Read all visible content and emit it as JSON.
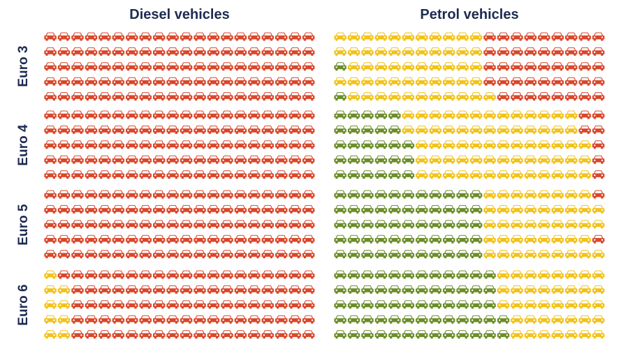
{
  "chart_data": {
    "type": "waffle",
    "columns": [
      "Diesel vehicles",
      "Petrol vehicles"
    ],
    "rows": [
      "Euro 3",
      "Euro 4",
      "Euro 5",
      "Euro 6"
    ],
    "icon": "car-icon",
    "icons_per_line": 20,
    "lines_per_block": 5,
    "colors": {
      "green": "#6b8e2a",
      "yellow": "#f2c21b",
      "red": "#d9472b"
    },
    "blocks": [
      {
        "column": "Diesel vehicles",
        "row": "Euro 3",
        "lines": [
          {
            "green": 0,
            "yellow": 0,
            "red": 20
          },
          {
            "green": 0,
            "yellow": 0,
            "red": 20
          },
          {
            "green": 0,
            "yellow": 0,
            "red": 20
          },
          {
            "green": 0,
            "yellow": 0,
            "red": 20
          },
          {
            "green": 0,
            "yellow": 0,
            "red": 20
          }
        ]
      },
      {
        "column": "Petrol vehicles",
        "row": "Euro 3",
        "lines": [
          {
            "green": 0,
            "yellow": 11,
            "red": 9
          },
          {
            "green": 0,
            "yellow": 11,
            "red": 9
          },
          {
            "green": 1,
            "yellow": 10,
            "red": 9
          },
          {
            "green": 0,
            "yellow": 11,
            "red": 9
          },
          {
            "green": 1,
            "yellow": 11,
            "red": 8
          }
        ]
      },
      {
        "column": "Diesel vehicles",
        "row": "Euro 4",
        "lines": [
          {
            "green": 0,
            "yellow": 0,
            "red": 20
          },
          {
            "green": 0,
            "yellow": 0,
            "red": 20
          },
          {
            "green": 0,
            "yellow": 0,
            "red": 20
          },
          {
            "green": 0,
            "yellow": 0,
            "red": 20
          },
          {
            "green": 0,
            "yellow": 0,
            "red": 20
          }
        ]
      },
      {
        "column": "Petrol vehicles",
        "row": "Euro 4",
        "lines": [
          {
            "green": 5,
            "yellow": 13,
            "red": 2
          },
          {
            "green": 5,
            "yellow": 13,
            "red": 2
          },
          {
            "green": 6,
            "yellow": 13,
            "red": 1
          },
          {
            "green": 6,
            "yellow": 13,
            "red": 1
          },
          {
            "green": 6,
            "yellow": 13,
            "red": 1
          }
        ]
      },
      {
        "column": "Diesel vehicles",
        "row": "Euro 5",
        "lines": [
          {
            "green": 0,
            "yellow": 0,
            "red": 20
          },
          {
            "green": 0,
            "yellow": 0,
            "red": 20
          },
          {
            "green": 0,
            "yellow": 0,
            "red": 20
          },
          {
            "green": 0,
            "yellow": 0,
            "red": 20
          },
          {
            "green": 0,
            "yellow": 0,
            "red": 20
          }
        ]
      },
      {
        "column": "Petrol vehicles",
        "row": "Euro 5",
        "lines": [
          {
            "green": 11,
            "yellow": 8,
            "red": 1
          },
          {
            "green": 11,
            "yellow": 9,
            "red": 0
          },
          {
            "green": 11,
            "yellow": 9,
            "red": 0
          },
          {
            "green": 11,
            "yellow": 8,
            "red": 1
          },
          {
            "green": 11,
            "yellow": 9,
            "red": 0
          }
        ]
      },
      {
        "column": "Diesel vehicles",
        "row": "Euro 6",
        "lines": [
          {
            "green": 0,
            "yellow": 1,
            "red": 19
          },
          {
            "green": 0,
            "yellow": 2,
            "red": 18
          },
          {
            "green": 0,
            "yellow": 2,
            "red": 18
          },
          {
            "green": 0,
            "yellow": 2,
            "red": 18
          },
          {
            "green": 0,
            "yellow": 2,
            "red": 18
          }
        ]
      },
      {
        "column": "Petrol vehicles",
        "row": "Euro 6",
        "lines": [
          {
            "green": 12,
            "yellow": 8,
            "red": 0
          },
          {
            "green": 12,
            "yellow": 8,
            "red": 0
          },
          {
            "green": 12,
            "yellow": 8,
            "red": 0
          },
          {
            "green": 13,
            "yellow": 7,
            "red": 0
          },
          {
            "green": 13,
            "yellow": 7,
            "red": 0
          }
        ]
      }
    ]
  }
}
